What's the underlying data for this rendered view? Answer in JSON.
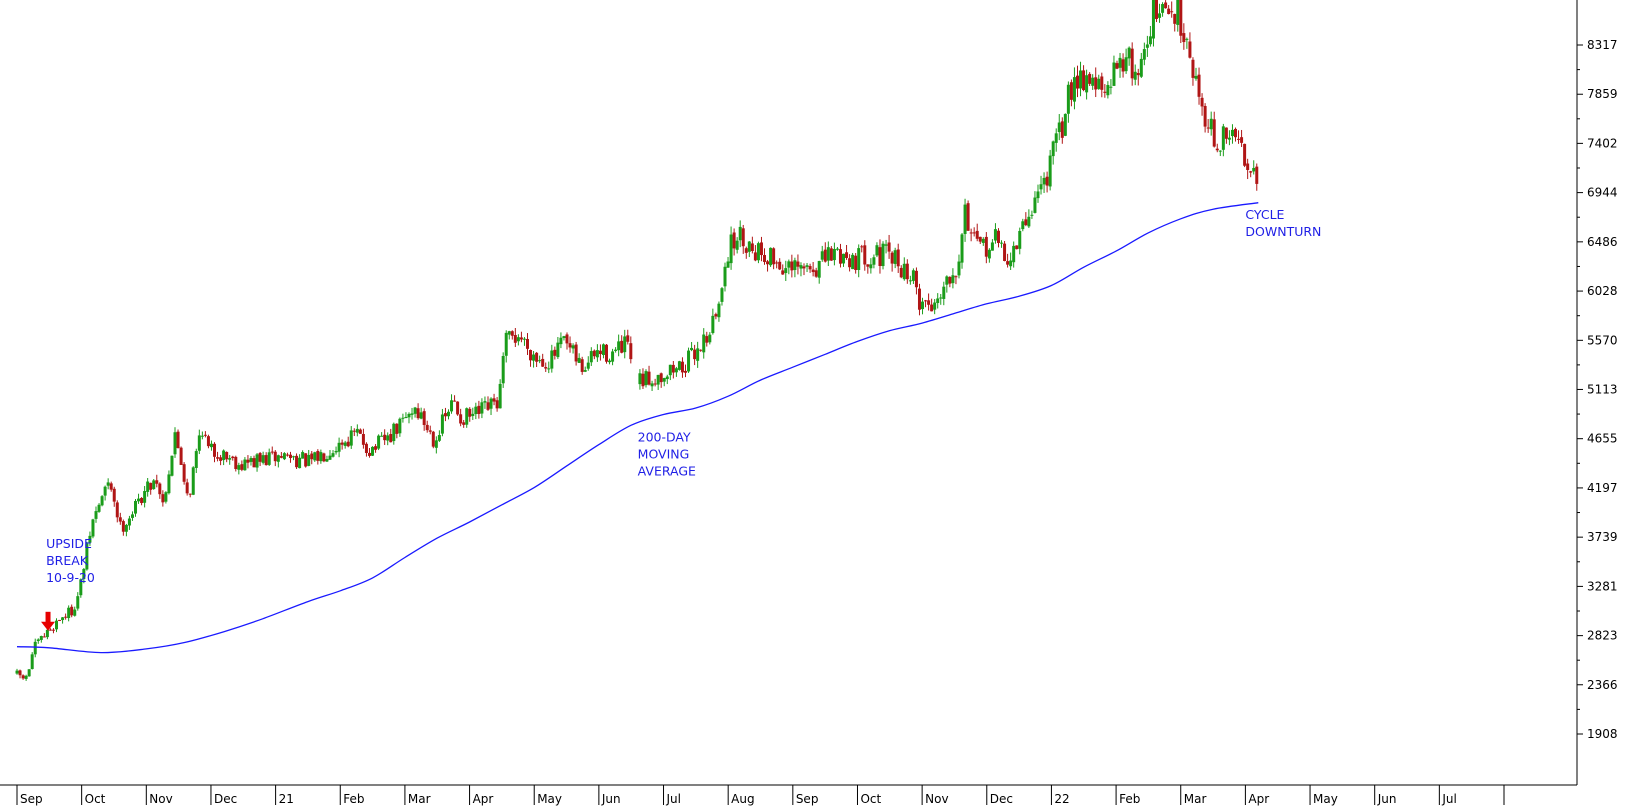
{
  "chart_data": {
    "type": "candlestick",
    "title": "",
    "xlabel": "",
    "ylabel": "",
    "y_ticks": [
      1908,
      2366,
      2823,
      3281,
      3739,
      4197,
      4655,
      5113,
      5570,
      6028,
      6486,
      6944,
      7402,
      7859,
      8317
    ],
    "x_tick_labels": [
      "Sep",
      "Oct",
      "Nov",
      "Dec",
      "21",
      "Feb",
      "Mar",
      "Apr",
      "May",
      "Jun",
      "Jul",
      "Aug",
      "Sep",
      "Oct",
      "Nov",
      "Dec",
      "22",
      "Feb",
      "Mar",
      "Apr",
      "May",
      "Jun",
      "Jul"
    ],
    "x_range_months": [
      0,
      23
    ],
    "ylim": [
      1580,
      8780
    ],
    "grid": false,
    "series": [
      {
        "name": "",
        "kind": "candlestick",
        "up_color": "#1a9c1a",
        "down_color": "#b01515",
        "trend_path": [
          [
            0.0,
            2470
          ],
          [
            0.2,
            2420
          ],
          [
            0.3,
            2700
          ],
          [
            0.5,
            2840
          ],
          [
            0.7,
            2980
          ],
          [
            0.9,
            3060
          ],
          [
            1.0,
            3200
          ],
          [
            1.2,
            3850
          ],
          [
            1.4,
            4180
          ],
          [
            1.5,
            4220
          ],
          [
            1.65,
            3820
          ],
          [
            1.85,
            3990
          ],
          [
            2.0,
            4150
          ],
          [
            2.2,
            4300
          ],
          [
            2.3,
            4050
          ],
          [
            2.5,
            4700
          ],
          [
            2.7,
            4100
          ],
          [
            2.9,
            4800
          ],
          [
            3.0,
            4550
          ],
          [
            3.3,
            4500
          ],
          [
            3.5,
            4420
          ],
          [
            3.8,
            4450
          ],
          [
            4.2,
            4500
          ],
          [
            4.6,
            4430
          ],
          [
            4.85,
            4550
          ],
          [
            5.3,
            4700
          ],
          [
            5.5,
            4550
          ],
          [
            5.8,
            4660
          ],
          [
            6.0,
            4800
          ],
          [
            6.2,
            4950
          ],
          [
            6.5,
            4650
          ],
          [
            6.8,
            5000
          ],
          [
            6.9,
            4850
          ],
          [
            7.1,
            4860
          ],
          [
            7.4,
            4960
          ],
          [
            7.5,
            5000
          ],
          [
            7.6,
            5550
          ],
          [
            7.8,
            5620
          ],
          [
            8.1,
            5400
          ],
          [
            8.3,
            5380
          ],
          [
            8.5,
            5550
          ],
          [
            8.8,
            5300
          ],
          [
            9.0,
            5450
          ],
          [
            9.3,
            5450
          ],
          [
            9.5,
            5530
          ],
          [
            9.6,
            5150
          ],
          [
            10.0,
            5250
          ],
          [
            10.4,
            5350
          ],
          [
            10.7,
            5600
          ],
          [
            10.9,
            5850
          ],
          [
            11.0,
            6350
          ],
          [
            11.2,
            6550
          ],
          [
            11.4,
            6450
          ],
          [
            11.7,
            6350
          ],
          [
            12.0,
            6200
          ],
          [
            12.4,
            6250
          ],
          [
            12.7,
            6390
          ],
          [
            13.0,
            6330
          ],
          [
            13.3,
            6380
          ],
          [
            13.6,
            6330
          ],
          [
            13.9,
            6150
          ],
          [
            14.0,
            5950
          ],
          [
            14.2,
            5880
          ],
          [
            14.4,
            6130
          ],
          [
            14.6,
            6300
          ],
          [
            14.7,
            6800
          ],
          [
            14.9,
            6400
          ],
          [
            15.2,
            6500
          ],
          [
            15.4,
            6300
          ],
          [
            15.6,
            6600
          ],
          [
            15.8,
            6900
          ],
          [
            16.0,
            7150
          ],
          [
            16.2,
            7550
          ],
          [
            16.4,
            8050
          ],
          [
            16.7,
            8000
          ],
          [
            16.9,
            7800
          ],
          [
            17.1,
            8250
          ],
          [
            17.4,
            8050
          ],
          [
            17.6,
            8600
          ],
          [
            18.0,
            8620
          ],
          [
            18.15,
            8400
          ],
          [
            18.3,
            7900
          ],
          [
            18.45,
            7650
          ],
          [
            18.6,
            7350
          ],
          [
            18.8,
            7500
          ],
          [
            19.0,
            7350
          ],
          [
            19.2,
            7150
          ]
        ]
      },
      {
        "name": "200-DAY MOVING AVERAGE",
        "kind": "line",
        "color": "#1a1aff",
        "points": [
          [
            0.0,
            2720
          ],
          [
            0.5,
            2710
          ],
          [
            1.3,
            2665
          ],
          [
            2.0,
            2700
          ],
          [
            2.6,
            2760
          ],
          [
            3.2,
            2860
          ],
          [
            3.8,
            2980
          ],
          [
            4.5,
            3140
          ],
          [
            5.0,
            3240
          ],
          [
            5.5,
            3360
          ],
          [
            6.0,
            3550
          ],
          [
            6.5,
            3730
          ],
          [
            7.0,
            3880
          ],
          [
            7.5,
            4040
          ],
          [
            8.0,
            4200
          ],
          [
            8.5,
            4400
          ],
          [
            9.0,
            4600
          ],
          [
            9.5,
            4780
          ],
          [
            10.0,
            4880
          ],
          [
            10.5,
            4940
          ],
          [
            11.0,
            5050
          ],
          [
            11.5,
            5200
          ],
          [
            12.0,
            5320
          ],
          [
            12.5,
            5440
          ],
          [
            13.0,
            5560
          ],
          [
            13.5,
            5660
          ],
          [
            14.0,
            5730
          ],
          [
            14.5,
            5820
          ],
          [
            15.0,
            5910
          ],
          [
            15.5,
            5980
          ],
          [
            16.0,
            6080
          ],
          [
            16.5,
            6250
          ],
          [
            17.0,
            6400
          ],
          [
            17.5,
            6570
          ],
          [
            18.0,
            6700
          ],
          [
            18.5,
            6790
          ],
          [
            19.2,
            6850
          ]
        ]
      }
    ],
    "annotations": [
      {
        "lines": [
          "UPSIDE",
          "BREAK",
          "10-9-20"
        ],
        "x": 0.45,
        "y": 3640
      },
      {
        "lines": [
          "200-DAY",
          "MOVING",
          "AVERAGE"
        ],
        "x": 9.6,
        "y": 4630
      },
      {
        "lines": [
          "CYCLE",
          "DOWNTURN"
        ],
        "x": 19.0,
        "y": 6700
      }
    ],
    "markers": [
      {
        "kind": "down-arrow",
        "x": 0.48,
        "y": 2840,
        "color": "#e60000"
      }
    ]
  }
}
